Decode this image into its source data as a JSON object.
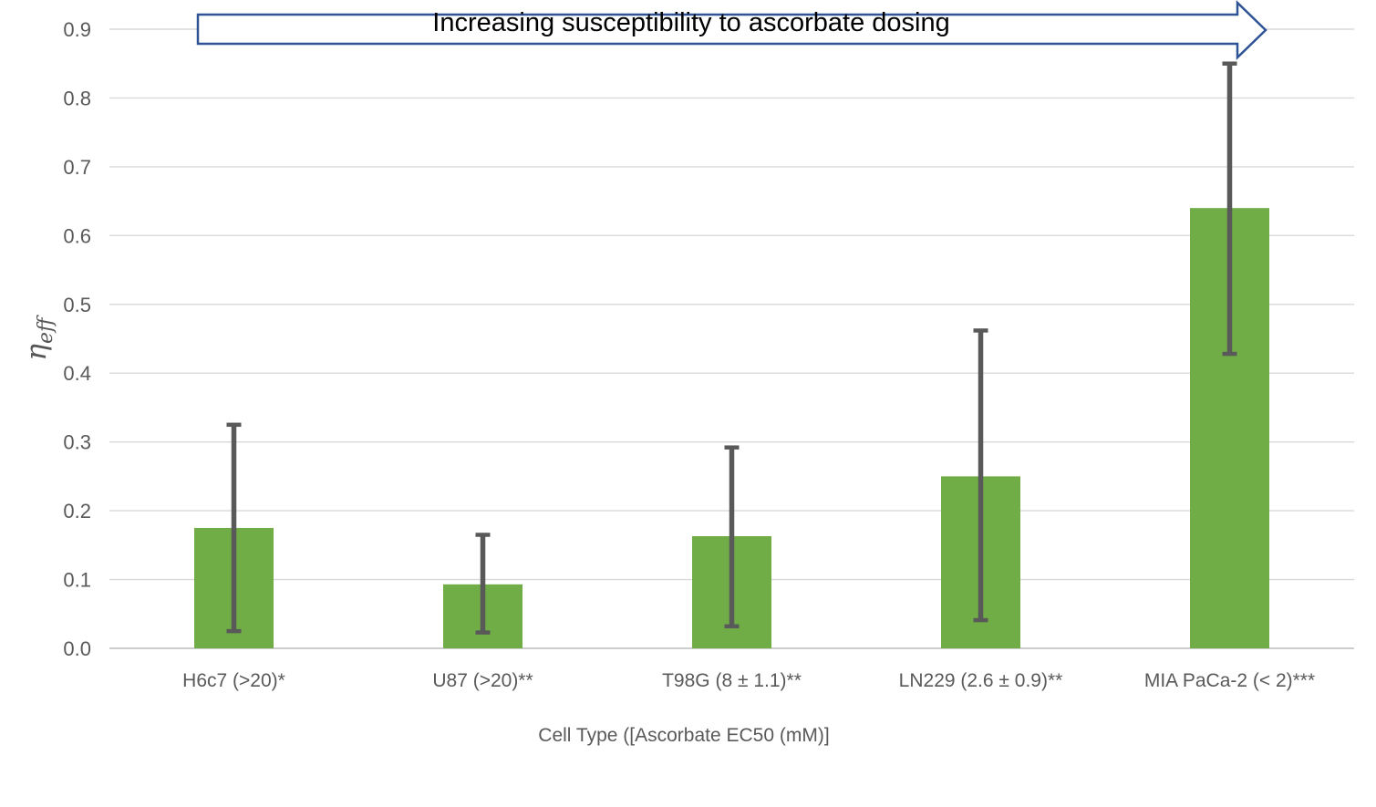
{
  "chart_data": {
    "type": "bar",
    "annotation": "Increasing susceptibility to ascorbate dosing",
    "xlabel": "Cell Type ([Ascorbate EC50 (mM)]",
    "ylabel": "η_eff",
    "ylabel_main": "η",
    "ylabel_sub": "eff",
    "categories": [
      "H6c7 (>20)*",
      "U87 (>20)**",
      "T98G (8 ± 1.1)**",
      "LN229 (2.6 ± 0.9)**",
      "MIA PaCa-2 (< 2)***"
    ],
    "values": [
      0.175,
      0.093,
      0.163,
      0.25,
      0.64
    ],
    "error_low": [
      0.025,
      0.023,
      0.032,
      0.041,
      0.428
    ],
    "error_high": [
      0.325,
      0.165,
      0.292,
      0.462,
      0.85
    ],
    "ylim": [
      0,
      0.9
    ],
    "ytick_step": 0.1,
    "ytick_labels": [
      "0.0",
      "0.1",
      "0.2",
      "0.3",
      "0.4",
      "0.5",
      "0.6",
      "0.7",
      "0.8",
      "0.9"
    ],
    "grid": true,
    "legend": "none",
    "colors": {
      "bar": "#70AD47",
      "error": "#595959",
      "gridline": "#D9D9D9",
      "axis_line": "#C6C6C6",
      "tick_text": "#595959",
      "arrow_outline": "#2F5496",
      "arrow_fill": "#FFFFFF",
      "annotation_text": "#000000",
      "background": "#FFFFFF"
    }
  }
}
